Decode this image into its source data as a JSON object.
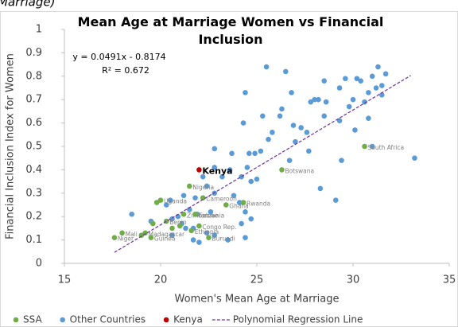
{
  "chart_data": {
    "type": "scatter",
    "caption_fragment": "Marriage)",
    "title": "Mean Age at Marriage Women vs Financial Inclusion",
    "x_label": "Women's Mean Age at Marriage",
    "y_label": "Financial Inclusion Index for Women",
    "annotations": [
      "y = 0.0491x - 0.8174",
      "R² = 0.672"
    ],
    "xlim": [
      15,
      35
    ],
    "xticks": [
      15,
      20,
      25,
      30,
      35
    ],
    "ylim": [
      0,
      1
    ],
    "yticks": [
      0,
      0.1,
      0.2,
      0.3,
      0.4,
      0.5,
      0.6,
      0.7,
      0.8,
      0.9,
      1
    ],
    "grid": false,
    "legend": "bottom",
    "series": [
      {
        "name": "Other Countries",
        "color": "#5b9bd5",
        "x": [
          25.5,
          26.5,
          31.3,
          31.0,
          31.7,
          30.4,
          29.6,
          29.3,
          30.2,
          31.5,
          31.2,
          30.8,
          28.5,
          28.0,
          28.6,
          29.8,
          30.0,
          31.5,
          30.6,
          30.8,
          28.5,
          29.3,
          30.1,
          31.0,
          33.2,
          29.4,
          29.1,
          28.3,
          26.8,
          27.8,
          26.3,
          26.2,
          25.3,
          24.4,
          24.3,
          26.9,
          27.3,
          28.2,
          27.6,
          25.8,
          25.6,
          27.0,
          27.7,
          26.7,
          25.2,
          24.9,
          24.6,
          24.5,
          23.7,
          22.8,
          22.8,
          23.6,
          24.2,
          25.0,
          24.7,
          23.2,
          22.2,
          22.4,
          23.8,
          24.1,
          22.8,
          21.8,
          21.2,
          20.5,
          20.3,
          21.5,
          21.9,
          20.9,
          22.6,
          24.4,
          24.2,
          24.4,
          24.7,
          23.5,
          22.8,
          21.7,
          22.0,
          22.4,
          21.3,
          20.6,
          21.7,
          19.5,
          18.5,
          21.1,
          20.6
        ],
        "values": [
          0.84,
          0.82,
          0.84,
          0.8,
          0.81,
          0.78,
          0.79,
          0.75,
          0.79,
          0.76,
          0.75,
          0.73,
          0.78,
          0.7,
          0.69,
          0.67,
          0.7,
          0.72,
          0.69,
          0.62,
          0.63,
          0.61,
          0.57,
          0.5,
          0.45,
          0.44,
          0.27,
          0.32,
          0.73,
          0.69,
          0.66,
          0.63,
          0.63,
          0.73,
          0.6,
          0.59,
          0.58,
          0.7,
          0.56,
          0.56,
          0.53,
          0.52,
          0.48,
          0.44,
          0.48,
          0.47,
          0.47,
          0.41,
          0.47,
          0.49,
          0.41,
          0.4,
          0.37,
          0.36,
          0.35,
          0.37,
          0.37,
          0.33,
          0.29,
          0.26,
          0.3,
          0.28,
          0.29,
          0.27,
          0.25,
          0.23,
          0.21,
          0.2,
          0.22,
          0.22,
          0.17,
          0.11,
          0.19,
          0.1,
          0.12,
          0.1,
          0.09,
          0.13,
          0.15,
          0.12,
          0.15,
          0.18,
          0.21,
          0.17,
          0.19
        ]
      },
      {
        "name": "SSA",
        "color": "#70ad47",
        "x": [
          30.6,
          26.3,
          21.5,
          23.4,
          20.0,
          22.2,
          24.3,
          21.2,
          21.8,
          20.3,
          22.0,
          21.6,
          22.5,
          18.0,
          19.2,
          17.6,
          19.5,
          19.6,
          19.8,
          20.6,
          21.0,
          19.0
        ],
        "values": [
          0.5,
          0.4,
          0.33,
          0.25,
          0.27,
          0.28,
          0.26,
          0.21,
          0.21,
          0.18,
          0.16,
          0.14,
          0.11,
          0.13,
          0.13,
          0.11,
          0.11,
          0.17,
          0.26,
          0.15,
          0.16,
          0.12
        ],
        "point_labels": [
          "South Africa",
          "Botswana",
          "Nigeria",
          "Ghana",
          "Uganda",
          "Cameroon",
          "Rwanda",
          "Zimbabwe",
          "Tanzania",
          "Benin",
          "Congo Rep.",
          "Ethiopia",
          "Burundi",
          "Mali",
          "Madagascar",
          "Niger",
          "Guinea",
          null,
          null,
          null,
          null,
          null
        ]
      },
      {
        "name": "Kenya",
        "color": "#c00000",
        "x": [
          22.0
        ],
        "values": [
          0.4
        ],
        "point_labels": [
          "Kenya"
        ]
      }
    ],
    "legend_order": [
      1,
      0,
      2
    ],
    "trendline": {
      "name": "Polynomial Regression Line",
      "color": "#7030a0",
      "x": [
        17.6,
        33.0
      ],
      "values": [
        0.047,
        0.803
      ]
    }
  }
}
